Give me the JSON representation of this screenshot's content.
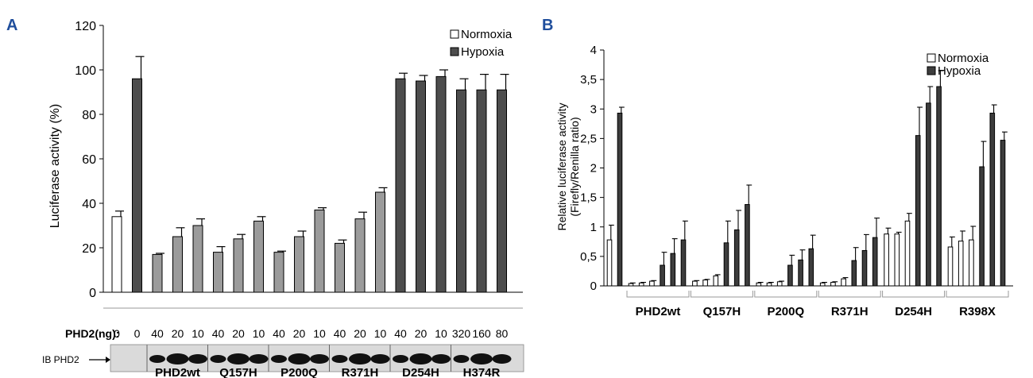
{
  "panels": [
    {
      "letter": "A",
      "legend": [
        {
          "label": "Normoxia",
          "color": "#ffffff"
        },
        {
          "label": "Hypoxia",
          "color": "#4d4d4d"
        }
      ],
      "dose_label": "PHD2(ng):",
      "ib_label": "IB PHD2"
    },
    {
      "letter": "B",
      "legend": [
        {
          "label": "Normoxia",
          "color": "#ffffff"
        },
        {
          "label": "Hypoxia",
          "color": "#3d3d3d"
        }
      ]
    }
  ],
  "colors": {
    "normoxia": "#ffffff",
    "hypoxia_a": "#4d4d4d",
    "treated_a": "#9b9b9b",
    "hypoxia_b": "#3d3d3d",
    "axis": "#000000",
    "panel_letter": "#1f4e9c"
  },
  "chart_data": [
    {
      "type": "bar",
      "panel": "A",
      "ylabel": "Luciferase activity (%)",
      "xlabel": "",
      "ylim": [
        0,
        120
      ],
      "yticks": [
        0,
        20,
        40,
        60,
        80,
        100,
        120
      ],
      "bars": [
        {
          "value": 34,
          "error": 2.5,
          "kind": "normoxia",
          "dose": "0"
        },
        {
          "value": 96,
          "error": 10,
          "kind": "hypoxia",
          "dose": "0"
        },
        {
          "value": 17,
          "error": 0.5,
          "kind": "treated",
          "dose": "40",
          "group": "PHD2wt"
        },
        {
          "value": 25,
          "error": 4,
          "kind": "treated",
          "dose": "20",
          "group": "PHD2wt"
        },
        {
          "value": 30,
          "error": 3,
          "kind": "treated",
          "dose": "10",
          "group": "PHD2wt"
        },
        {
          "value": 18,
          "error": 2.5,
          "kind": "treated",
          "dose": "40",
          "group": "Q157H"
        },
        {
          "value": 24,
          "error": 2,
          "kind": "treated",
          "dose": "20",
          "group": "Q157H"
        },
        {
          "value": 32,
          "error": 2,
          "kind": "treated",
          "dose": "10",
          "group": "Q157H"
        },
        {
          "value": 18,
          "error": 0.5,
          "kind": "treated",
          "dose": "40",
          "group": "P200Q"
        },
        {
          "value": 25,
          "error": 2.5,
          "kind": "treated",
          "dose": "20",
          "group": "P200Q"
        },
        {
          "value": 37,
          "error": 1,
          "kind": "treated",
          "dose": "10",
          "group": "P200Q"
        },
        {
          "value": 22,
          "error": 1.5,
          "kind": "treated",
          "dose": "40",
          "group": "R371H"
        },
        {
          "value": 33,
          "error": 3,
          "kind": "treated",
          "dose": "20",
          "group": "R371H"
        },
        {
          "value": 45,
          "error": 2,
          "kind": "treated",
          "dose": "10",
          "group": "R371H"
        },
        {
          "value": 96,
          "error": 2.5,
          "kind": "hypoxia",
          "dose": "40",
          "group": "D254H"
        },
        {
          "value": 95,
          "error": 2.5,
          "kind": "hypoxia",
          "dose": "20",
          "group": "D254H"
        },
        {
          "value": 97,
          "error": 3,
          "kind": "hypoxia",
          "dose": "10",
          "group": "D254H"
        },
        {
          "value": 91,
          "error": 5,
          "kind": "hypoxia",
          "dose": "320",
          "group": "H374R"
        },
        {
          "value": 91,
          "error": 7,
          "kind": "hypoxia",
          "dose": "160",
          "group": "H374R"
        },
        {
          "value": 91,
          "error": 7,
          "kind": "hypoxia",
          "dose": "80",
          "group": "H374R"
        }
      ],
      "groups": [
        "PHD2wt",
        "Q157H",
        "P200Q",
        "R371H",
        "D254H",
        "H374R"
      ],
      "legend_position": "top-right"
    },
    {
      "type": "bar",
      "panel": "B",
      "ylabel": "Relative luciferase activity",
      "ylabel2": "(Firefly/Renilla ratio)",
      "xlabel": "",
      "ylim": [
        0,
        4
      ],
      "yticks": [
        "0",
        "0,5",
        "1",
        "1,5",
        "2",
        "2,5",
        "3",
        "3,5",
        "4"
      ],
      "bars": [
        {
          "value": 0.78,
          "error": 0.25,
          "kind": "normoxia"
        },
        {
          "value": 2.93,
          "error": 0.1,
          "kind": "hypoxia"
        },
        {
          "value": 0.04,
          "error": 0.01,
          "kind": "normoxia",
          "group": "PHD2wt"
        },
        {
          "value": 0.05,
          "error": 0.01,
          "kind": "normoxia",
          "group": "PHD2wt"
        },
        {
          "value": 0.08,
          "error": 0.01,
          "kind": "normoxia",
          "group": "PHD2wt"
        },
        {
          "value": 0.35,
          "error": 0.22,
          "kind": "hypoxia",
          "group": "PHD2wt"
        },
        {
          "value": 0.55,
          "error": 0.25,
          "kind": "hypoxia",
          "group": "PHD2wt"
        },
        {
          "value": 0.78,
          "error": 0.32,
          "kind": "hypoxia",
          "group": "PHD2wt"
        },
        {
          "value": 0.08,
          "error": 0.01,
          "kind": "normoxia",
          "group": "Q157H"
        },
        {
          "value": 0.1,
          "error": 0.01,
          "kind": "normoxia",
          "group": "Q157H"
        },
        {
          "value": 0.17,
          "error": 0.02,
          "kind": "normoxia",
          "group": "Q157H"
        },
        {
          "value": 0.73,
          "error": 0.37,
          "kind": "hypoxia",
          "group": "Q157H"
        },
        {
          "value": 0.95,
          "error": 0.33,
          "kind": "hypoxia",
          "group": "Q157H"
        },
        {
          "value": 1.38,
          "error": 0.33,
          "kind": "hypoxia",
          "group": "Q157H"
        },
        {
          "value": 0.05,
          "error": 0.01,
          "kind": "normoxia",
          "group": "P200Q"
        },
        {
          "value": 0.05,
          "error": 0.01,
          "kind": "normoxia",
          "group": "P200Q"
        },
        {
          "value": 0.07,
          "error": 0.01,
          "kind": "normoxia",
          "group": "P200Q"
        },
        {
          "value": 0.35,
          "error": 0.17,
          "kind": "hypoxia",
          "group": "P200Q"
        },
        {
          "value": 0.44,
          "error": 0.17,
          "kind": "hypoxia",
          "group": "P200Q"
        },
        {
          "value": 0.63,
          "error": 0.23,
          "kind": "hypoxia",
          "group": "P200Q"
        },
        {
          "value": 0.05,
          "error": 0.01,
          "kind": "normoxia",
          "group": "R371H"
        },
        {
          "value": 0.06,
          "error": 0.01,
          "kind": "normoxia",
          "group": "R371H"
        },
        {
          "value": 0.12,
          "error": 0.02,
          "kind": "normoxia",
          "group": "R371H"
        },
        {
          "value": 0.43,
          "error": 0.22,
          "kind": "hypoxia",
          "group": "R371H"
        },
        {
          "value": 0.6,
          "error": 0.27,
          "kind": "hypoxia",
          "group": "R371H"
        },
        {
          "value": 0.82,
          "error": 0.33,
          "kind": "hypoxia",
          "group": "R371H"
        },
        {
          "value": 0.88,
          "error": 0.1,
          "kind": "normoxia",
          "group": "D254H"
        },
        {
          "value": 0.88,
          "error": 0.03,
          "kind": "normoxia",
          "group": "D254H"
        },
        {
          "value": 1.1,
          "error": 0.13,
          "kind": "normoxia",
          "group": "D254H"
        },
        {
          "value": 2.55,
          "error": 0.48,
          "kind": "hypoxia",
          "group": "D254H"
        },
        {
          "value": 3.1,
          "error": 0.28,
          "kind": "hypoxia",
          "group": "D254H"
        },
        {
          "value": 3.38,
          "error": 0.27,
          "kind": "hypoxia",
          "group": "D254H"
        },
        {
          "value": 0.66,
          "error": 0.17,
          "kind": "normoxia",
          "group": "R398X"
        },
        {
          "value": 0.76,
          "error": 0.17,
          "kind": "normoxia",
          "group": "R398X"
        },
        {
          "value": 0.78,
          "error": 0.23,
          "kind": "normoxia",
          "group": "R398X"
        },
        {
          "value": 2.02,
          "error": 0.43,
          "kind": "hypoxia",
          "group": "R398X"
        },
        {
          "value": 2.93,
          "error": 0.14,
          "kind": "hypoxia",
          "group": "R398X"
        },
        {
          "value": 2.47,
          "error": 0.14,
          "kind": "hypoxia",
          "group": "R398X"
        }
      ],
      "groups": [
        "PHD2wt",
        "Q157H",
        "P200Q",
        "R371H",
        "D254H",
        "R398X"
      ],
      "legend_position": "top-right"
    }
  ]
}
